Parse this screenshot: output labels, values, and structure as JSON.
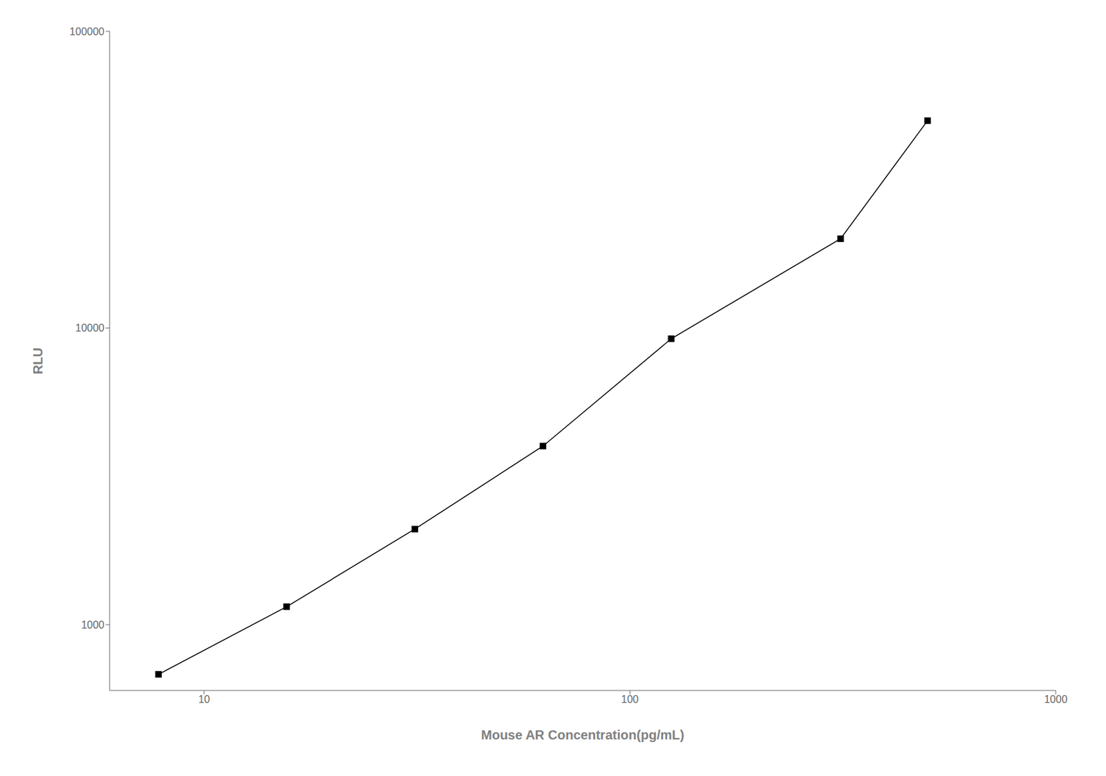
{
  "chart_data": {
    "type": "line",
    "x": [
      7.8125,
      15.625,
      31.25,
      62.5,
      125,
      312.5,
      500
    ],
    "values": [
      680,
      1150,
      2100,
      4000,
      9200,
      20000,
      50000
    ],
    "xlabel": "Mouse AR Concentration(pg/mL)",
    "ylabel": "RLU",
    "xlim": [
      6,
      1000
    ],
    "ylim": [
      600,
      100000
    ],
    "xticks": [
      10,
      100,
      1000
    ],
    "yticks": [
      1000,
      10000,
      100000
    ],
    "log": true,
    "color": "#000000",
    "marker": "square",
    "grid": false
  }
}
